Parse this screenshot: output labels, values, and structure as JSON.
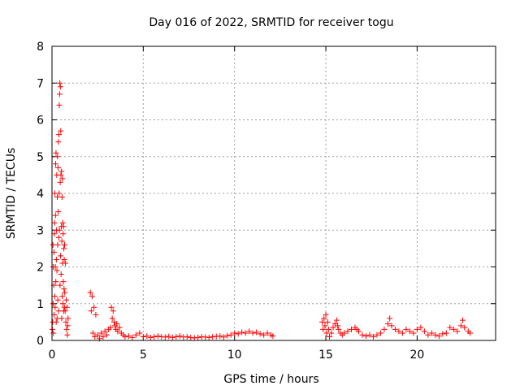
{
  "chart_data": {
    "type": "scatter",
    "title": "Day 016 of 2022, SRMTID for receiver togu",
    "xlabel": "GPS time / hours",
    "ylabel": "SRMTID / TECUs",
    "xlim": [
      0,
      24.3
    ],
    "ylim": [
      0,
      8
    ],
    "xticks": [
      0,
      5,
      10,
      15,
      20
    ],
    "yticks": [
      0,
      1,
      2,
      3,
      4,
      5,
      6,
      7,
      8
    ],
    "grid": true,
    "marker": "+",
    "marker_color": "#ff0000",
    "series": [
      {
        "name": "SRMTID",
        "points": [
          [
            0.02,
            0.3
          ],
          [
            0.04,
            0.5
          ],
          [
            0.05,
            2.6
          ],
          [
            0.06,
            1.0
          ],
          [
            0.07,
            2.0
          ],
          [
            0.08,
            0.2
          ],
          [
            0.1,
            1.5
          ],
          [
            0.11,
            2.4
          ],
          [
            0.12,
            0.7
          ],
          [
            0.13,
            2.9
          ],
          [
            0.14,
            3.2
          ],
          [
            0.15,
            1.2
          ],
          [
            0.16,
            4.0
          ],
          [
            0.17,
            0.9
          ],
          [
            0.18,
            2.0
          ],
          [
            0.19,
            3.4
          ],
          [
            0.2,
            4.8
          ],
          [
            0.21,
            1.6
          ],
          [
            0.22,
            5.1
          ],
          [
            0.23,
            0.5
          ],
          [
            0.24,
            2.2
          ],
          [
            0.25,
            3.0
          ],
          [
            0.26,
            4.5
          ],
          [
            0.27,
            1.9
          ],
          [
            0.28,
            0.6
          ],
          [
            0.29,
            3.9
          ],
          [
            0.3,
            5.0
          ],
          [
            0.31,
            2.6
          ],
          [
            0.32,
            1.1
          ],
          [
            0.33,
            4.7
          ],
          [
            0.34,
            3.5
          ],
          [
            0.35,
            5.4
          ],
          [
            0.36,
            0.8
          ],
          [
            0.37,
            2.8
          ],
          [
            0.38,
            5.6
          ],
          [
            0.39,
            4.0
          ],
          [
            0.4,
            6.4
          ],
          [
            0.41,
            3.0
          ],
          [
            0.42,
            6.7
          ],
          [
            0.43,
            7.0
          ],
          [
            0.44,
            1.5
          ],
          [
            0.45,
            4.3
          ],
          [
            0.46,
            6.9
          ],
          [
            0.47,
            2.3
          ],
          [
            0.48,
            5.7
          ],
          [
            0.49,
            4.5
          ],
          [
            0.5,
            1.8
          ],
          [
            0.51,
            3.1
          ],
          [
            0.52,
            4.6
          ],
          [
            0.53,
            0.6
          ],
          [
            0.54,
            2.7
          ],
          [
            0.55,
            3.9
          ],
          [
            0.56,
            1.2
          ],
          [
            0.57,
            4.4
          ],
          [
            0.58,
            2.1
          ],
          [
            0.59,
            3.2
          ],
          [
            0.6,
            1.0
          ],
          [
            0.61,
            2.9
          ],
          [
            0.62,
            1.6
          ],
          [
            0.63,
            3.1
          ],
          [
            0.64,
            0.8
          ],
          [
            0.65,
            2.5
          ],
          [
            0.66,
            1.4
          ],
          [
            0.67,
            2.2
          ],
          [
            0.68,
            0.9
          ],
          [
            0.69,
            2.6
          ],
          [
            0.7,
            1.3
          ],
          [
            0.72,
            0.8
          ],
          [
            0.74,
            2.1
          ],
          [
            0.76,
            0.5
          ],
          [
            0.78,
            1.1
          ],
          [
            0.8,
            0.3
          ],
          [
            0.82,
            0.9
          ],
          [
            0.84,
            0.15
          ],
          [
            0.86,
            0.4
          ],
          [
            0.88,
            0.6
          ],
          [
            2.1,
            1.3
          ],
          [
            2.15,
            0.8
          ],
          [
            2.2,
            1.2
          ],
          [
            2.25,
            0.2
          ],
          [
            2.3,
            0.9
          ],
          [
            2.35,
            0.1
          ],
          [
            2.4,
            0.7
          ],
          [
            2.5,
            0.15
          ],
          [
            2.6,
            0.05
          ],
          [
            2.7,
            0.2
          ],
          [
            2.8,
            0.1
          ],
          [
            2.9,
            0.25
          ],
          [
            3.0,
            0.15
          ],
          [
            3.1,
            0.3
          ],
          [
            3.2,
            0.35
          ],
          [
            3.25,
            0.9
          ],
          [
            3.3,
            0.6
          ],
          [
            3.35,
            0.8
          ],
          [
            3.4,
            0.5
          ],
          [
            3.45,
            0.4
          ],
          [
            3.5,
            0.3
          ],
          [
            3.55,
            0.45
          ],
          [
            3.6,
            0.25
          ],
          [
            3.7,
            0.35
          ],
          [
            3.8,
            0.2
          ],
          [
            3.9,
            0.15
          ],
          [
            4.0,
            0.1
          ],
          [
            4.2,
            0.12
          ],
          [
            4.4,
            0.08
          ],
          [
            4.6,
            0.15
          ],
          [
            4.8,
            0.2
          ],
          [
            5.0,
            0.1
          ],
          [
            5.2,
            0.12
          ],
          [
            5.4,
            0.08
          ],
          [
            5.6,
            0.1
          ],
          [
            5.8,
            0.12
          ],
          [
            6.0,
            0.1
          ],
          [
            6.2,
            0.09
          ],
          [
            6.4,
            0.11
          ],
          [
            6.6,
            0.08
          ],
          [
            6.8,
            0.1
          ],
          [
            7.0,
            0.12
          ],
          [
            7.2,
            0.09
          ],
          [
            7.4,
            0.1
          ],
          [
            7.6,
            0.08
          ],
          [
            7.8,
            0.07
          ],
          [
            8.0,
            0.08
          ],
          [
            8.2,
            0.1
          ],
          [
            8.4,
            0.09
          ],
          [
            8.6,
            0.08
          ],
          [
            8.8,
            0.1
          ],
          [
            9.0,
            0.11
          ],
          [
            9.2,
            0.12
          ],
          [
            9.4,
            0.09
          ],
          [
            9.6,
            0.13
          ],
          [
            9.8,
            0.15
          ],
          [
            10.0,
            0.2
          ],
          [
            10.2,
            0.18
          ],
          [
            10.4,
            0.22
          ],
          [
            10.6,
            0.2
          ],
          [
            10.8,
            0.25
          ],
          [
            11.0,
            0.2
          ],
          [
            11.2,
            0.22
          ],
          [
            11.4,
            0.18
          ],
          [
            11.6,
            0.15
          ],
          [
            11.8,
            0.2
          ],
          [
            12.0,
            0.15
          ],
          [
            12.1,
            0.12
          ],
          [
            14.8,
            0.5
          ],
          [
            14.85,
            0.3
          ],
          [
            14.9,
            0.6
          ],
          [
            14.95,
            0.4
          ],
          [
            15.0,
            0.7
          ],
          [
            15.05,
            0.2
          ],
          [
            15.1,
            0.5
          ],
          [
            15.15,
            0.3
          ],
          [
            15.2,
            0.1
          ],
          [
            15.3,
            0.2
          ],
          [
            15.4,
            0.35
          ],
          [
            15.5,
            0.45
          ],
          [
            15.6,
            0.55
          ],
          [
            15.65,
            0.4
          ],
          [
            15.7,
            0.3
          ],
          [
            15.8,
            0.2
          ],
          [
            15.9,
            0.15
          ],
          [
            16.0,
            0.2
          ],
          [
            16.2,
            0.25
          ],
          [
            16.4,
            0.3
          ],
          [
            16.6,
            0.35
          ],
          [
            16.7,
            0.3
          ],
          [
            16.8,
            0.25
          ],
          [
            17.0,
            0.15
          ],
          [
            17.2,
            0.12
          ],
          [
            17.4,
            0.15
          ],
          [
            17.6,
            0.1
          ],
          [
            17.8,
            0.15
          ],
          [
            18.0,
            0.2
          ],
          [
            18.2,
            0.3
          ],
          [
            18.4,
            0.45
          ],
          [
            18.5,
            0.6
          ],
          [
            18.6,
            0.4
          ],
          [
            18.8,
            0.3
          ],
          [
            19.0,
            0.25
          ],
          [
            19.2,
            0.2
          ],
          [
            19.4,
            0.3
          ],
          [
            19.6,
            0.25
          ],
          [
            19.8,
            0.2
          ],
          [
            20.0,
            0.3
          ],
          [
            20.2,
            0.35
          ],
          [
            20.4,
            0.25
          ],
          [
            20.6,
            0.15
          ],
          [
            20.8,
            0.2
          ],
          [
            21.0,
            0.15
          ],
          [
            21.2,
            0.12
          ],
          [
            21.4,
            0.18
          ],
          [
            21.6,
            0.2
          ],
          [
            21.8,
            0.35
          ],
          [
            22.0,
            0.3
          ],
          [
            22.2,
            0.25
          ],
          [
            22.4,
            0.4
          ],
          [
            22.5,
            0.55
          ],
          [
            22.6,
            0.35
          ],
          [
            22.8,
            0.25
          ],
          [
            22.9,
            0.2
          ]
        ]
      }
    ]
  }
}
